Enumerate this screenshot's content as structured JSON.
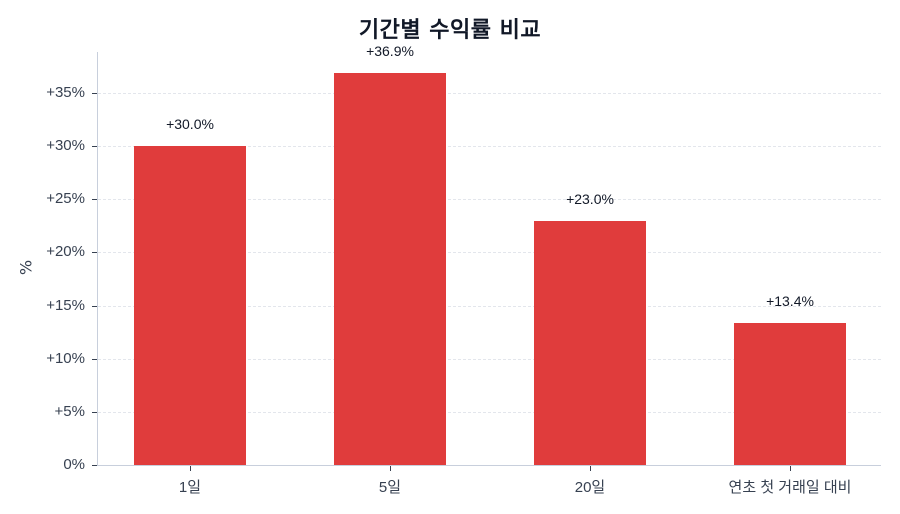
{
  "chart_data": {
    "type": "bar",
    "title": "기간별 수익률 비교",
    "xlabel": "",
    "ylabel": "%",
    "categories": [
      "1일",
      "5일",
      "20일",
      "연초 첫 거래일 대비"
    ],
    "values": [
      30.0,
      36.9,
      23.0,
      13.4
    ],
    "value_labels": [
      "+30.0%",
      "+36.9%",
      "+23.0%",
      "+13.4%"
    ],
    "ylim": [
      0,
      38.9
    ],
    "yticks": [
      0,
      5,
      10,
      15,
      20,
      25,
      30,
      35
    ],
    "ytick_labels": [
      "0%",
      "+5%",
      "+10%",
      "+15%",
      "+20%",
      "+25%",
      "+30%",
      "+35%"
    ],
    "grid": "y-dashed",
    "legend": null,
    "bar_color": "#e03c3c"
  }
}
